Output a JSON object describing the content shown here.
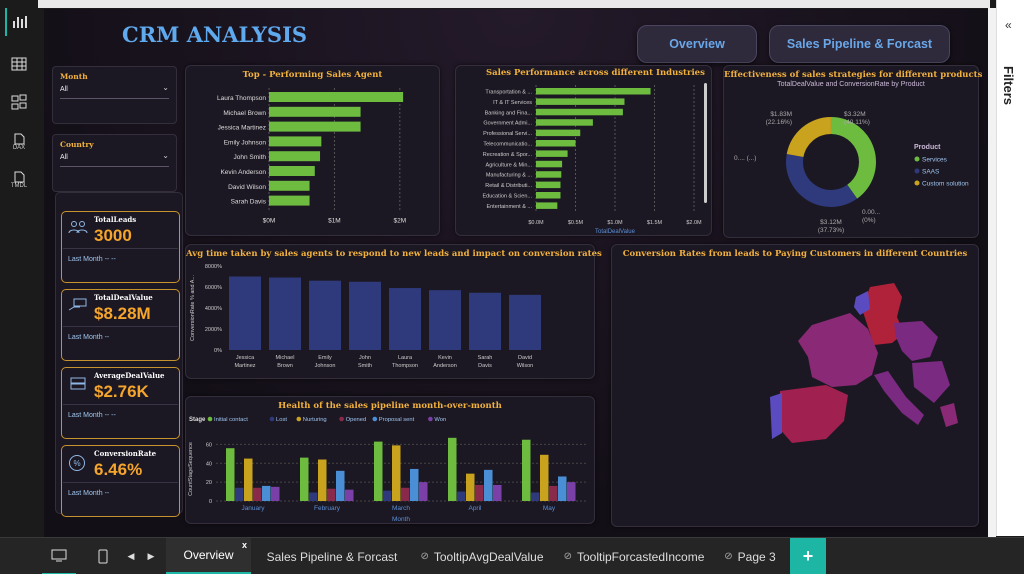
{
  "report": {
    "title": "CRM ANALYSIS",
    "nav_overview": "Overview",
    "nav_pipeline": "Sales Pipeline & Forcast"
  },
  "filters_pane": {
    "label": "Filters",
    "collapse": "«"
  },
  "rail": {
    "dax": "DAX",
    "tmdl": "TMDL"
  },
  "slicers": [
    {
      "title": "Month",
      "value": "All"
    },
    {
      "title": "Country",
      "value": "All"
    }
  ],
  "kpis": [
    {
      "title": "TotalLeads",
      "value": "3000",
      "sub": "Last Month -- --",
      "icon": "people-icon"
    },
    {
      "title": "TotalDealValue",
      "value": "$8.28M",
      "sub": "Last Month --",
      "icon": "money-hand-icon"
    },
    {
      "title": "AverageDealValue",
      "value": "$2.76K",
      "sub": "Last Month -- --",
      "icon": "money-stack-icon"
    },
    {
      "title": "ConversionRate",
      "value": "6.46%",
      "sub": "Last Month --",
      "icon": "percent-icon"
    }
  ],
  "tabs": [
    "Overview",
    "Sales Pipeline & Forcast",
    "TooltipAvgDealValue",
    "TooltipForcastedIncome",
    "Page 3"
  ],
  "colors": {
    "green": "#6dbb3f",
    "navy": "#2e3a7c",
    "gold": "#c9a31e",
    "accent": "#f2b13c",
    "teal": "#1db5a4"
  },
  "chart_data": [
    {
      "type": "bar",
      "orientation": "horizontal",
      "title": "Top - Performing Sales Agent",
      "categories": [
        "Laura Thompson",
        "Michael Brown",
        "Jessica Martinez",
        "Emily Johnson",
        "John Smith",
        "Kevin Anderson",
        "David Wilson",
        "Sarah Davis"
      ],
      "values": [
        2.05,
        1.4,
        1.4,
        0.8,
        0.78,
        0.7,
        0.62,
        0.62
      ],
      "xticks": [
        "$0M",
        "$1M",
        "$2M"
      ],
      "xlim": [
        0,
        2.4
      ]
    },
    {
      "type": "bar",
      "orientation": "horizontal",
      "title": "Sales Performance across different Industries",
      "xlabel": "TotalDealValue",
      "categories": [
        "Transportation & ...",
        "IT & IT Services",
        "Banking and Fina...",
        "Government Admi...",
        "Professional Servi...",
        "Telecommunicatio...",
        "Recreation & Spor...",
        "Agriculture & Min...",
        "Manufacturing & ...",
        "Retail & Distributi...",
        "Education & Scien...",
        "Entertainment & ..."
      ],
      "values": [
        1.45,
        1.12,
        1.1,
        0.72,
        0.56,
        0.5,
        0.4,
        0.33,
        0.32,
        0.31,
        0.31,
        0.27
      ],
      "xticks": [
        "$0.0M",
        "$0.5M",
        "$1.0M",
        "$1.5M",
        "$2.0M"
      ],
      "xlim": [
        0,
        2.0
      ]
    },
    {
      "type": "pie",
      "title": "Effectiveness of sales strategies for different products",
      "subtitle": "TotalDealValue and ConversionRate by Product",
      "legend_title": "Product",
      "slices": [
        {
          "name": "Services",
          "value": 3.32,
          "label": "$3.32M (40.11%)"
        },
        {
          "name": "SAAS",
          "value": 3.12,
          "label": "$3.12M (37.73%)"
        },
        {
          "name": "Custom solution",
          "value": 1.83,
          "label": "$1.83M (22.16%)"
        },
        {
          "name": "",
          "value": 0.001,
          "label": "0.00... (0%)"
        }
      ],
      "extra_labels": [
        "0.... (...)"
      ]
    },
    {
      "type": "bar",
      "title": "Avg time taken by sales agents to respond to new leads and impact on conversion rates",
      "ylabel": "ConversionRate % and A...",
      "categories": [
        "Jessica Martinez",
        "Michael Brown",
        "Emily Johnson",
        "John Smith",
        "Laura Thompson",
        "Kevin Anderson",
        "Sarah Davis",
        "David Wilson"
      ],
      "values": [
        7000,
        6900,
        6600,
        6500,
        5900,
        5700,
        5450,
        5250
      ],
      "yticks": [
        "0%",
        "2000%",
        "4000%",
        "6000%",
        "8000%"
      ],
      "ylim": [
        0,
        8000
      ]
    },
    {
      "type": "bar",
      "title": "Health of the sales pipeline month-over-month",
      "xlabel": "Month",
      "ylabel": "CountStageSequence",
      "legend_title": "Stage",
      "categories": [
        "January",
        "February",
        "March",
        "April",
        "May"
      ],
      "series": [
        {
          "name": "Initial contact",
          "color": "#6dbb3f",
          "values": [
            56,
            46,
            63,
            67,
            65
          ]
        },
        {
          "name": "Lost",
          "color": "#2e3a7c",
          "values": [
            14,
            9,
            11,
            10,
            9
          ]
        },
        {
          "name": "Nurturing",
          "color": "#c9a31e",
          "values": [
            45,
            44,
            59,
            29,
            49
          ]
        },
        {
          "name": "Opened",
          "color": "#8a2a4a",
          "values": [
            14,
            13,
            14,
            17,
            16
          ]
        },
        {
          "name": "Proposal sent",
          "color": "#4a8fd6",
          "values": [
            16,
            32,
            34,
            33,
            26
          ]
        },
        {
          "name": "Won",
          "color": "#7b3fa8",
          "values": [
            15,
            12,
            20,
            17,
            20
          ]
        }
      ],
      "yticks": [
        "0",
        "20",
        "40",
        "60"
      ],
      "ylim": [
        0,
        70
      ]
    },
    {
      "type": "map",
      "title": "Conversion Rates from leads to Paying Customers in different Countries"
    }
  ]
}
